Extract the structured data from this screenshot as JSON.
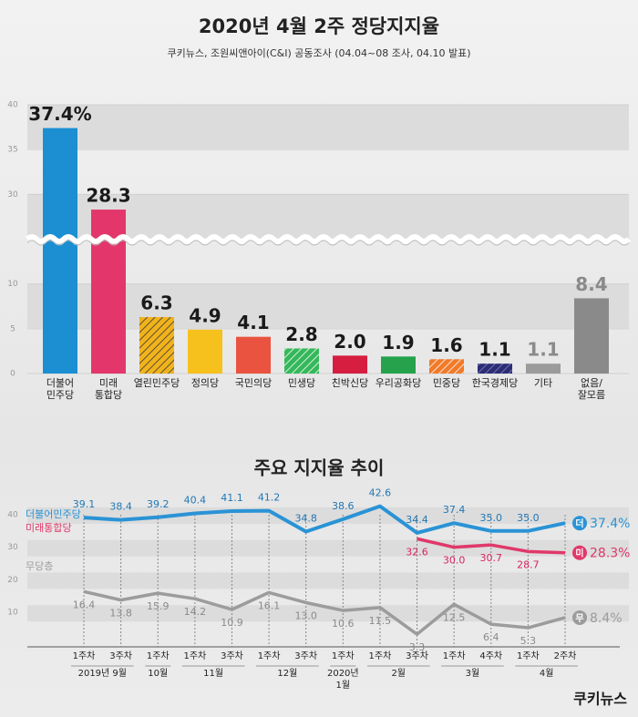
{
  "chart_data": [
    {
      "type": "bar",
      "title": "2020년 4월 2주 정당지지율",
      "subtitle": "쿠키뉴스, 조원씨앤아이(C&I) 공동조사 (04.04~08 조사, 04.10 발표)",
      "categories": [
        "더불어\n민주당",
        "미래\n통합당",
        "열린민주당",
        "정의당",
        "국민의당",
        "민생당",
        "친박신당",
        "우리공화당",
        "민중당",
        "한국경제당",
        "기타",
        "없음/\n잘모름"
      ],
      "values": [
        37.4,
        28.3,
        6.3,
        4.9,
        4.1,
        2.8,
        2.0,
        1.9,
        1.6,
        1.1,
        1.1,
        8.4
      ],
      "value_labels": [
        "37.4%",
        "28.3",
        "6.3",
        "4.9",
        "4.1",
        "2.8",
        "2.0",
        "1.9",
        "1.6",
        "1.1",
        "1.1",
        "8.4"
      ],
      "colors": [
        "#1b8fd2",
        "#e3376b",
        "#f1b31c",
        "#f6c11d",
        "#e9533f",
        "#35b85b",
        "#d61f40",
        "#25a24b",
        "#f07b2a",
        "#2c2b76",
        "#9b9b9b",
        "#8a8a8a"
      ],
      "hatched": [
        false,
        false,
        true,
        false,
        false,
        true,
        false,
        false,
        true,
        true,
        false,
        false
      ],
      "ylim": [
        0,
        40
      ],
      "axis_break": [
        15,
        25
      ],
      "yticks": [
        0,
        5,
        10,
        30,
        35,
        40
      ],
      "grid": true
    },
    {
      "type": "line",
      "title": "주요 지지율 추이",
      "x": [
        "1주차",
        "3주차",
        "1주차",
        "1주차",
        "3주차",
        "1주차",
        "3주차",
        "1주차",
        "1주차",
        "3주차",
        "1주차",
        "4주차",
        "1주차",
        "2주차"
      ],
      "x_groups": [
        {
          "label": "2019년 9월",
          "count": 2
        },
        {
          "label": "10월",
          "count": 1
        },
        {
          "label": "11월",
          "count": 2
        },
        {
          "label": "12월",
          "count": 2
        },
        {
          "label": "2020년\n1월",
          "count": 1
        },
        {
          "label": "2월",
          "count": 2
        },
        {
          "label": "3월",
          "count": 2
        },
        {
          "label": "4월",
          "count": 2
        }
      ],
      "series": [
        {
          "name": "더불어민주당",
          "badge": "더",
          "color": "#2a93d5",
          "values": [
            39.1,
            38.4,
            39.2,
            40.4,
            41.1,
            41.2,
            34.8,
            38.6,
            42.6,
            34.4,
            37.4,
            35.0,
            35.0,
            37.4
          ],
          "value_labels": [
            "39.1",
            "38.4",
            "39.2",
            "40.4",
            "41.1",
            "41.2",
            "34.8",
            "38.6",
            "42.6",
            "34.4",
            "37.4",
            "35.0",
            "35.0",
            "37.4%"
          ]
        },
        {
          "name": "미래통합당",
          "badge": "미",
          "color": "#e0386a",
          "values": [
            null,
            null,
            null,
            null,
            null,
            null,
            null,
            null,
            null,
            32.6,
            30.0,
            30.7,
            28.7,
            28.3
          ],
          "value_labels": [
            null,
            null,
            null,
            null,
            null,
            null,
            null,
            null,
            null,
            "32.6",
            "30.0",
            "30.7",
            "28.7",
            "28.3%"
          ]
        },
        {
          "name": "무당층",
          "badge": "무",
          "color": "#9c9c9c",
          "values": [
            16.4,
            13.8,
            15.9,
            14.2,
            10.9,
            16.1,
            13.0,
            10.6,
            11.5,
            3.3,
            12.5,
            6.4,
            5.3,
            8.4
          ],
          "value_labels": [
            "16.4",
            "13.8",
            "15.9",
            "14.2",
            "10.9",
            "16.1",
            "13.0",
            "10.6",
            "11.5",
            "3.3",
            "12.5",
            "6.4",
            "5.3",
            "8.4%"
          ]
        }
      ],
      "ylim": [
        0,
        45
      ],
      "yticks": [
        10,
        20,
        30,
        40
      ],
      "grid": true
    }
  ],
  "footer": {
    "logo": "쿠키뉴스"
  }
}
